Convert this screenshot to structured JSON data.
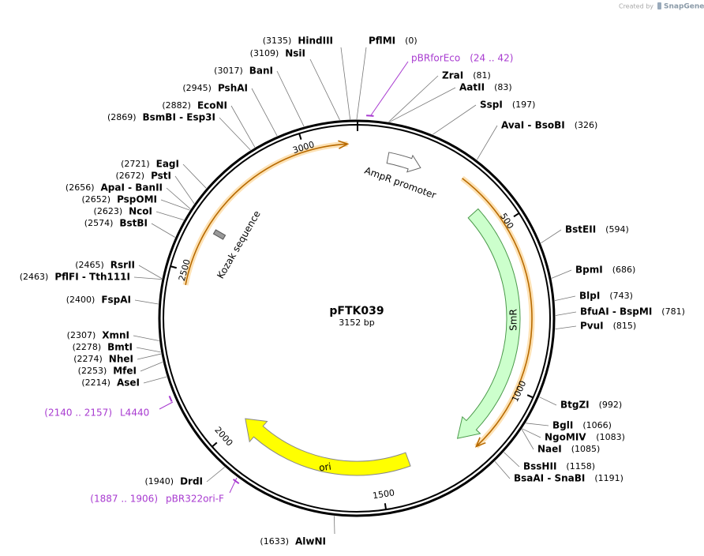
{
  "logo": {
    "prefix": "Created by",
    "brand": "SnapGene"
  },
  "plasmid": {
    "name": "pFTK039",
    "size": "3152 bp"
  },
  "ticks": [
    500,
    1000,
    1500,
    2000,
    2500,
    3000
  ],
  "features": [
    {
      "label": "AmpR promoter"
    },
    {
      "label": "SmR"
    },
    {
      "label": "ori"
    },
    {
      "label": "Kozak sequence"
    }
  ],
  "primers": [
    {
      "name": "pBRforEco",
      "range": "(24 .. 42)"
    },
    {
      "name": "L4440",
      "range": "(2140 .. 2157)"
    },
    {
      "name": "pBR322ori-F",
      "range": "(1887 .. 1906)"
    }
  ],
  "enzymes": [
    {
      "name": "HindIII",
      "position": "(3135)"
    },
    {
      "name": "NsiI",
      "position": "(3109)"
    },
    {
      "name": "BanI",
      "position": "(3017)"
    },
    {
      "name": "PshAI",
      "position": "(2945)"
    },
    {
      "name": "EcoNI",
      "position": "(2882)"
    },
    {
      "name": "BsmBI - Esp3I",
      "position": "(2869)"
    },
    {
      "name": "EagI",
      "position": "(2721)"
    },
    {
      "name": "PstI",
      "position": "(2672)"
    },
    {
      "name": "ApaI - BanII",
      "position": "(2656)"
    },
    {
      "name": "PspOMI",
      "position": "(2652)"
    },
    {
      "name": "NcoI",
      "position": "(2623)"
    },
    {
      "name": "BstBI",
      "position": "(2574)"
    },
    {
      "name": "RsrII",
      "position": "(2465)"
    },
    {
      "name": "PflFI - Tth111I",
      "position": "(2463)"
    },
    {
      "name": "FspAI",
      "position": "(2400)"
    },
    {
      "name": "XmnI",
      "position": "(2307)"
    },
    {
      "name": "BmtI",
      "position": "(2278)"
    },
    {
      "name": "NheI",
      "position": "(2274)"
    },
    {
      "name": "MfeI",
      "position": "(2253)"
    },
    {
      "name": "AseI",
      "position": "(2214)"
    },
    {
      "name": "DrdI",
      "position": "(1940)"
    },
    {
      "name": "AlwNI",
      "position": "(1633)"
    },
    {
      "name": "PflMI",
      "position": "(0)"
    },
    {
      "name": "ZraI",
      "position": "(81)"
    },
    {
      "name": "AatII",
      "position": "(83)"
    },
    {
      "name": "SspI",
      "position": "(197)"
    },
    {
      "name": "AvaI - BsoBI",
      "position": "(326)"
    },
    {
      "name": "BstEII",
      "position": "(594)"
    },
    {
      "name": "BpmI",
      "position": "(686)"
    },
    {
      "name": "BlpI",
      "position": "(743)"
    },
    {
      "name": "BfuAI - BspMI",
      "position": "(781)"
    },
    {
      "name": "PvuI",
      "position": "(815)"
    },
    {
      "name": "BtgZI",
      "position": "(992)"
    },
    {
      "name": "BglI",
      "position": "(1066)"
    },
    {
      "name": "NgoMIV",
      "position": "(1083)"
    },
    {
      "name": "NaeI",
      "position": "(1085)"
    },
    {
      "name": "BssHII",
      "position": "(1158)"
    },
    {
      "name": "BsaAI - SnaBI",
      "position": "(1191)"
    }
  ]
}
